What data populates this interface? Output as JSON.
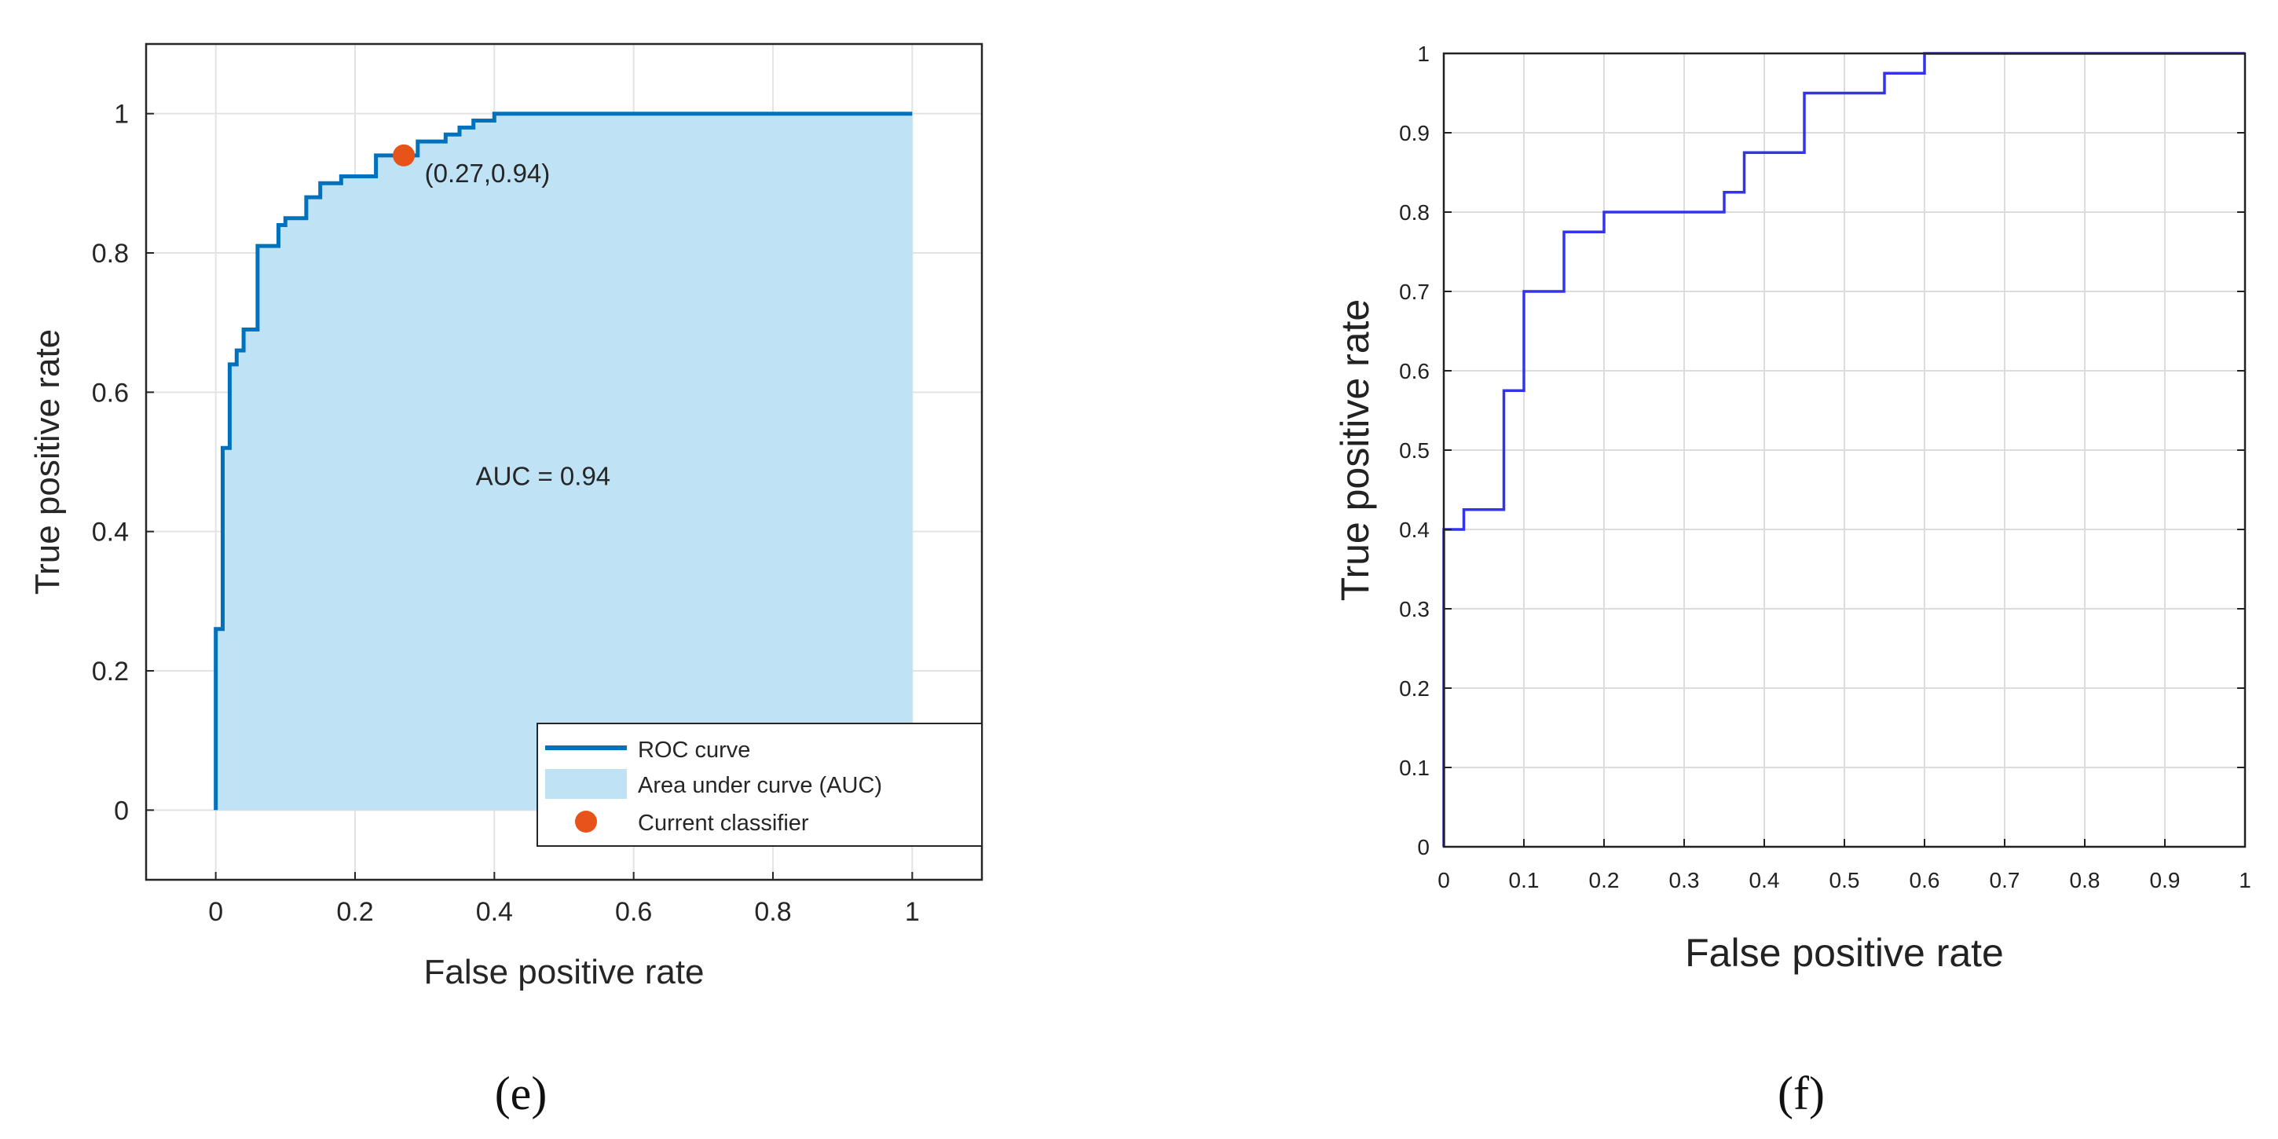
{
  "chart_data": [
    {
      "panel": "(e)",
      "type": "area",
      "xlabel": "False positive rate",
      "ylabel": "True positive rate",
      "xlim": [
        -0.1,
        1.1
      ],
      "ylim": [
        -0.1,
        1.1
      ],
      "xticks": [
        0,
        0.2,
        0.4,
        0.6,
        0.8,
        1
      ],
      "yticks": [
        0,
        0.2,
        0.4,
        0.6,
        0.8,
        1
      ],
      "xtick_labels": [
        "0",
        "0.2",
        "0.4",
        "0.6",
        "0.8",
        "1"
      ],
      "ytick_labels": [
        "0",
        "0.2",
        "0.4",
        "0.6",
        "0.8",
        "1"
      ],
      "grid": true,
      "legend_position": "bottom-right",
      "series": [
        {
          "name": "ROC curve",
          "style": "line",
          "color": "#0072BD",
          "x": [
            0,
            0,
            0.01,
            0.01,
            0.02,
            0.02,
            0.03,
            0.03,
            0.04,
            0.04,
            0.06,
            0.06,
            0.09,
            0.09,
            0.1,
            0.1,
            0.13,
            0.13,
            0.15,
            0.15,
            0.18,
            0.18,
            0.23,
            0.23,
            0.29,
            0.29,
            0.33,
            0.33,
            0.35,
            0.35,
            0.37,
            0.37,
            0.4,
            0.4,
            1
          ],
          "y": [
            0,
            0.26,
            0.26,
            0.52,
            0.52,
            0.64,
            0.64,
            0.66,
            0.66,
            0.69,
            0.69,
            0.81,
            0.81,
            0.84,
            0.84,
            0.85,
            0.85,
            0.88,
            0.88,
            0.9,
            0.9,
            0.91,
            0.91,
            0.94,
            0.94,
            0.96,
            0.96,
            0.97,
            0.97,
            0.98,
            0.98,
            0.99,
            0.99,
            1,
            1
          ]
        },
        {
          "name": "Area under curve (AUC)",
          "style": "area",
          "color": "#BFE2F5"
        },
        {
          "name": "Current classifier",
          "style": "point",
          "color": "#E8531A",
          "x": [
            0.27
          ],
          "y": [
            0.94
          ]
        }
      ],
      "annotations": [
        {
          "text": "(0.27,0.94)",
          "x": 0.3,
          "y": 0.915
        },
        {
          "text": "AUC = 0.94",
          "x": 0.47,
          "y": 0.48
        }
      ]
    },
    {
      "panel": "(f)",
      "type": "line",
      "xlabel": "False positive rate",
      "ylabel": "True positive rate",
      "xlim": [
        0,
        1
      ],
      "ylim": [
        0,
        1
      ],
      "xticks": [
        0,
        0.1,
        0.2,
        0.3,
        0.4,
        0.5,
        0.6,
        0.7,
        0.8,
        0.9,
        1
      ],
      "yticks": [
        0,
        0.1,
        0.2,
        0.3,
        0.4,
        0.5,
        0.6,
        0.7,
        0.8,
        0.9,
        1
      ],
      "xtick_labels": [
        "0",
        "0.1",
        "0.2",
        "0.3",
        "0.4",
        "0.5",
        "0.6",
        "0.7",
        "0.8",
        "0.9",
        "1"
      ],
      "ytick_labels": [
        "0",
        "0.1",
        "0.2",
        "0.3",
        "0.4",
        "0.5",
        "0.6",
        "0.7",
        "0.8",
        "0.9",
        "1"
      ],
      "grid": true,
      "series": [
        {
          "style": "line",
          "color": "#3333EE",
          "x": [
            0,
            0,
            0.025,
            0.025,
            0.075,
            0.075,
            0.1,
            0.1,
            0.15,
            0.15,
            0.2,
            0.2,
            0.35,
            0.35,
            0.375,
            0.375,
            0.45,
            0.45,
            0.55,
            0.55,
            0.6,
            0.6,
            1
          ],
          "y": [
            0,
            0.4,
            0.4,
            0.425,
            0.425,
            0.575,
            0.575,
            0.7,
            0.7,
            0.775,
            0.775,
            0.8,
            0.8,
            0.825,
            0.825,
            0.875,
            0.875,
            0.95,
            0.95,
            0.975,
            0.975,
            1,
            1
          ]
        }
      ]
    }
  ],
  "captions": {
    "e": "(e)",
    "f": "(f)"
  },
  "legend_e": {
    "roc": "ROC curve",
    "auc": "Area under curve (AUC)",
    "classifier": "Current classifier"
  }
}
